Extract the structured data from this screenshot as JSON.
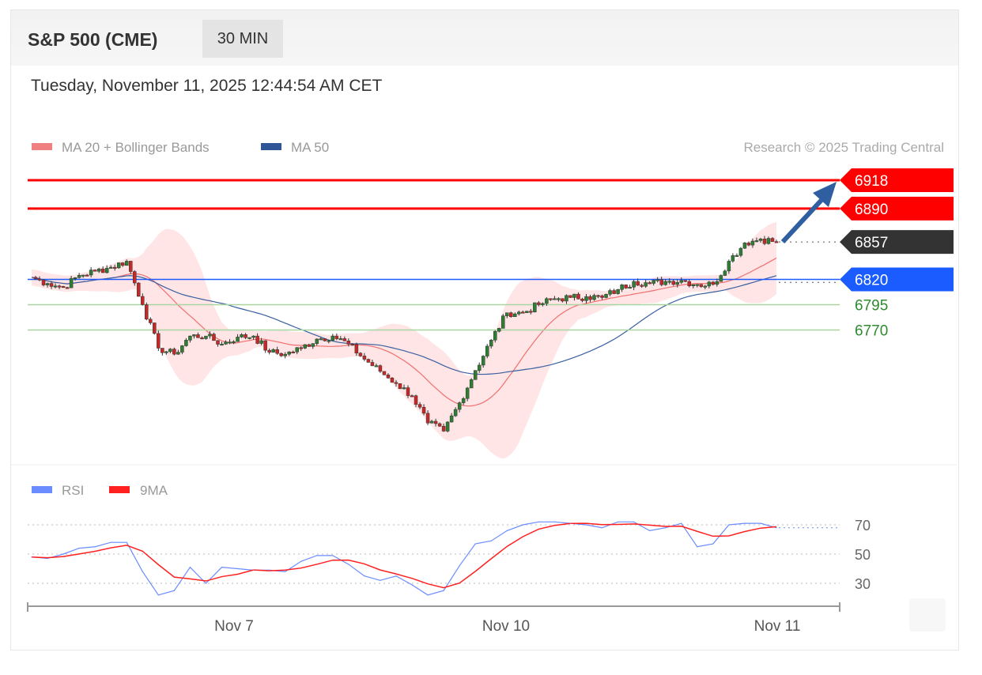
{
  "header": {
    "title": "S&P 500 (CME)",
    "timeframe": "30 MIN",
    "datetime": "Tuesday, November 11, 2025 12:44:54 AM CET"
  },
  "legend": {
    "ma20": "MA 20 + Bollinger Bands",
    "ma50": "MA 50",
    "copyright": "Research © 2025 Trading Central",
    "rsi": "RSI",
    "rsi_ma": "9MA"
  },
  "colors": {
    "up": "#2e7d32",
    "down": "#c62828",
    "resistance": "#ff0000",
    "last": "#333333",
    "pivot": "#1a5cff",
    "support": "#2e8b2e",
    "ma20": "#f07070",
    "band": "#ffdede",
    "ma50": "#3a5fa0",
    "rsi": "#6a8cff",
    "rsi_ma": "#ff2020",
    "arrow": "#2f5fa0"
  },
  "chart_data": [
    {
      "type": "candlestick",
      "title": "S&P 500 (CME)",
      "interval": "30 MIN",
      "x_ticks": [
        "Nov 7",
        "Nov 10",
        "Nov 11"
      ],
      "closes": [
        6822,
        6816,
        6812,
        6824,
        6828,
        6832,
        6838,
        6795,
        6752,
        6746,
        6764,
        6764,
        6756,
        6763,
        6764,
        6748,
        6746,
        6752,
        6761,
        6764,
        6756,
        6741,
        6729,
        6717,
        6705,
        6678,
        6670,
        6698,
        6730,
        6760,
        6787,
        6787,
        6795,
        6801,
        6802,
        6803,
        6802,
        6810,
        6818,
        6816,
        6818,
        6819,
        6815,
        6815,
        6838,
        6856,
        6860,
        6857
      ],
      "levels": [
        {
          "value": "6918",
          "kind": "resistance"
        },
        {
          "value": "6890",
          "kind": "resistance"
        },
        {
          "value": "6857",
          "kind": "last"
        },
        {
          "value": "6820",
          "kind": "pivot"
        },
        {
          "value": "6795",
          "kind": "support"
        },
        {
          "value": "6770",
          "kind": "support"
        }
      ],
      "target_arrow": "up to 6918",
      "series": [
        {
          "name": "MA 20 + Bollinger Bands"
        },
        {
          "name": "MA 50"
        }
      ]
    },
    {
      "type": "line",
      "series": [
        {
          "name": "RSI",
          "values": [
            48,
            47,
            50,
            54,
            55,
            58,
            58,
            38,
            22,
            25,
            41,
            30,
            41,
            40,
            39,
            39,
            38,
            45,
            49,
            49,
            43,
            35,
            32,
            35,
            29,
            22,
            25,
            42,
            57,
            59,
            66,
            70,
            72,
            72,
            71,
            70,
            68,
            72,
            72,
            66,
            68,
            71,
            55,
            57,
            70,
            71,
            71,
            68
          ]
        },
        {
          "name": "9MA"
        }
      ],
      "y_ticks": [
        "70",
        "50",
        "30"
      ],
      "ylim": [
        10,
        80
      ]
    }
  ]
}
